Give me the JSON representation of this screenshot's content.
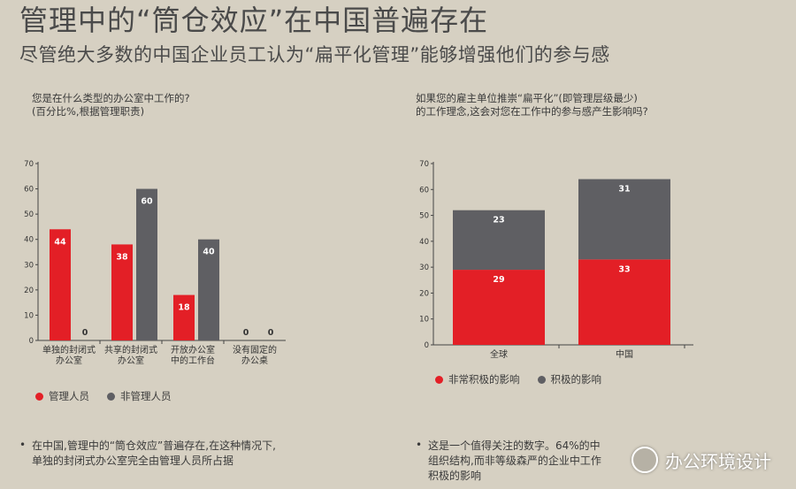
{
  "header": {
    "title": "管理中的“筒仓效应”在中国普遍存在",
    "subtitle": "尽管绝大多数的中国企业员工认为“扁平化管理”能够增强他们的参与感"
  },
  "left": {
    "question_line1": "您是在什么类型的办公室中工作的?",
    "question_line2": "(百分比%,根据管理职责)",
    "note_line1": "在中国,管理中的“筒仓效应”普遍存在,在这种情况下,",
    "note_line2": "单独的封闭式办公室完全由管理人员所占据"
  },
  "right": {
    "question_line1": "如果您的雇主单位推崇“扁平化”(即管理层级最少)",
    "question_line2": "的工作理念,这会对您在工作中的参与感产生影响吗?",
    "note_line1": "这是一个值得关注的数字。64%的中",
    "note_line2": "组织结构,而非等级森严的企业中工作",
    "note_line3": "积极的影响"
  },
  "watermark": "办公环境设计",
  "colors": {
    "red": "#e31f26",
    "grey": "#5f5f63",
    "background": "#d6d0c2"
  },
  "chart_data": [
    {
      "type": "bar",
      "categories": [
        [
          "单独的封闭式",
          "办公室"
        ],
        [
          "共享的封闭式",
          "办公室"
        ],
        [
          "开放办公室",
          "中的工作台"
        ],
        [
          "没有固定的",
          "办公桌"
        ]
      ],
      "series": [
        {
          "name": "管理人员",
          "color": "#e31f26",
          "values": [
            44,
            38,
            18,
            0
          ]
        },
        {
          "name": "非管理人员",
          "color": "#5f5f63",
          "values": [
            0,
            60,
            40,
            0
          ]
        }
      ],
      "ylim": [
        0,
        70
      ],
      "yticks": [
        0,
        10,
        20,
        30,
        40,
        50,
        60,
        70
      ],
      "legend_position": "bottom-left"
    },
    {
      "type": "bar",
      "stacked": true,
      "categories": [
        "全球",
        "中国"
      ],
      "series": [
        {
          "name": "非常积极的影响",
          "color": "#e31f26",
          "values": [
            29,
            33
          ]
        },
        {
          "name": "积极的影响",
          "color": "#5f5f63",
          "values": [
            23,
            31
          ]
        }
      ],
      "ylim": [
        0,
        70
      ],
      "yticks": [
        0,
        10,
        20,
        30,
        40,
        50,
        60,
        70
      ],
      "legend_position": "bottom-left"
    }
  ]
}
